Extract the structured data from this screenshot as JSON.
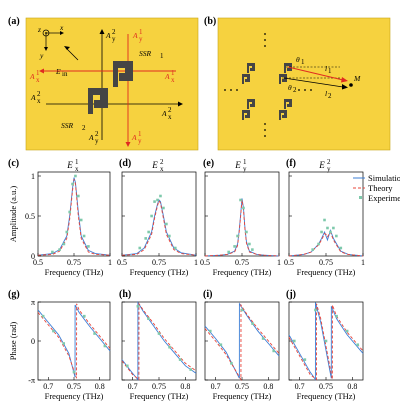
{
  "figure": {
    "panel_labels": [
      "(a)",
      "(b)",
      "(c)",
      "(d)",
      "(e)",
      "(f)",
      "(g)",
      "(h)",
      "(i)",
      "(j)"
    ],
    "colors": {
      "background_panel": "#f6d23f",
      "structure": "#454545",
      "simulation": "#3d7fd6",
      "theory": "#e8443a",
      "experiment": "#7ec9ab",
      "red_arrow": "#e02b20"
    },
    "panel_a": {
      "labels": {
        "x": "x",
        "y": "y",
        "z": "z",
        "ein": "E",
        "ein_sub": "in",
        "ssr1": "SSR",
        "ssr1_sub": "1",
        "ssr2": "SSR",
        "ssr2_sub": "2",
        "a1x": "A",
        "a1y": "A",
        "a2x": "A",
        "a2y": "A",
        "sup1": "1",
        "sup2": "2",
        "sub_x": "x",
        "sub_y": "y"
      }
    },
    "panel_b": {
      "labels": {
        "theta1": "θ",
        "theta2": "θ",
        "sub1": "1",
        "sub2": "2",
        "l1": "l",
        "l2": "l",
        "M": "M"
      }
    }
  },
  "chart_data": [
    {
      "type": "line",
      "panel": "(c)",
      "title": "E",
      "title_sup": "1",
      "title_sub": "x",
      "xlabel": "Frequency (THz)",
      "ylabel": "Amplitude (a.u.)",
      "xlim": [
        0.5,
        1.0
      ],
      "ylim": [
        0,
        1.05
      ],
      "xticks": [
        "0.5",
        "0.75",
        "1"
      ],
      "yticks": [
        "0",
        "0.5",
        "1"
      ],
      "series": [
        {
          "name": "Simulation",
          "x": [
            0.5,
            0.6,
            0.65,
            0.7,
            0.72,
            0.74,
            0.75,
            0.76,
            0.78,
            0.8,
            0.85,
            0.9,
            1.0
          ],
          "y": [
            0.01,
            0.03,
            0.08,
            0.25,
            0.5,
            0.85,
            0.98,
            0.92,
            0.55,
            0.25,
            0.07,
            0.03,
            0.01
          ]
        },
        {
          "name": "Theory",
          "x": [
            0.5,
            0.6,
            0.65,
            0.7,
            0.72,
            0.74,
            0.75,
            0.76,
            0.78,
            0.8,
            0.85,
            0.9,
            1.0
          ],
          "y": [
            0.01,
            0.02,
            0.06,
            0.22,
            0.46,
            0.82,
            0.96,
            0.9,
            0.5,
            0.22,
            0.05,
            0.02,
            0.01
          ]
        },
        {
          "name": "Experiment",
          "x": [
            0.6,
            0.65,
            0.68,
            0.7,
            0.72,
            0.74,
            0.76,
            0.78,
            0.8,
            0.82,
            0.85
          ],
          "y": [
            0.05,
            0.08,
            0.15,
            0.3,
            0.55,
            0.9,
            1.0,
            0.75,
            0.45,
            0.25,
            0.12
          ]
        }
      ]
    },
    {
      "type": "line",
      "panel": "(d)",
      "title": "E",
      "title_sup": "2",
      "title_sub": "x",
      "xlabel": "Frequency (THz)",
      "xlim": [
        0.5,
        1.0
      ],
      "ylim": [
        0,
        1.05
      ],
      "xticks": [
        "0.5",
        "0.75",
        "1"
      ],
      "series": [
        {
          "name": "Simulation",
          "x": [
            0.5,
            0.6,
            0.65,
            0.7,
            0.72,
            0.74,
            0.75,
            0.76,
            0.78,
            0.8,
            0.85,
            0.9,
            1.0
          ],
          "y": [
            0.01,
            0.03,
            0.1,
            0.3,
            0.5,
            0.65,
            0.7,
            0.68,
            0.5,
            0.3,
            0.1,
            0.04,
            0.01
          ]
        },
        {
          "name": "Theory",
          "x": [
            0.5,
            0.6,
            0.65,
            0.7,
            0.72,
            0.74,
            0.75,
            0.76,
            0.78,
            0.8,
            0.85,
            0.9,
            1.0
          ],
          "y": [
            0.01,
            0.02,
            0.08,
            0.27,
            0.47,
            0.63,
            0.69,
            0.66,
            0.47,
            0.27,
            0.08,
            0.03,
            0.01
          ]
        },
        {
          "name": "Experiment",
          "x": [
            0.62,
            0.66,
            0.68,
            0.7,
            0.72,
            0.74,
            0.76,
            0.78,
            0.8,
            0.82,
            0.86
          ],
          "y": [
            0.1,
            0.22,
            0.3,
            0.5,
            0.68,
            0.7,
            0.75,
            0.6,
            0.4,
            0.25,
            0.1
          ]
        }
      ]
    },
    {
      "type": "line",
      "panel": "(e)",
      "title": "E",
      "title_sup": "1",
      "title_sub": "y",
      "xlabel": "Frequency (THz)",
      "xlim": [
        0.5,
        1.0
      ],
      "ylim": [
        0,
        1.05
      ],
      "xticks": [
        "0.5",
        "0.75",
        "1"
      ],
      "series": [
        {
          "name": "Simulation",
          "x": [
            0.5,
            0.6,
            0.65,
            0.7,
            0.72,
            0.73,
            0.74,
            0.75,
            0.76,
            0.77,
            0.78,
            0.8,
            0.85,
            0.9,
            1.0
          ],
          "y": [
            0.0,
            0.01,
            0.02,
            0.06,
            0.15,
            0.3,
            0.5,
            0.72,
            0.6,
            0.35,
            0.18,
            0.06,
            0.02,
            0.01,
            0.0
          ]
        },
        {
          "name": "Theory",
          "x": [
            0.5,
            0.6,
            0.65,
            0.7,
            0.72,
            0.73,
            0.74,
            0.75,
            0.76,
            0.77,
            0.78,
            0.8,
            0.85,
            0.9,
            1.0
          ],
          "y": [
            0.0,
            0.01,
            0.02,
            0.05,
            0.13,
            0.28,
            0.48,
            0.7,
            0.58,
            0.33,
            0.16,
            0.05,
            0.02,
            0.01,
            0.0
          ]
        },
        {
          "name": "Experiment",
          "x": [
            0.66,
            0.7,
            0.72,
            0.74,
            0.76,
            0.78,
            0.8,
            0.82
          ],
          "y": [
            0.05,
            0.12,
            0.25,
            0.7,
            0.6,
            0.3,
            0.15,
            0.08
          ]
        }
      ]
    },
    {
      "type": "line",
      "panel": "(f)",
      "title": "E",
      "title_sup": "2",
      "title_sub": "y",
      "xlabel": "Frequency (THz)",
      "xlim": [
        0.5,
        1.0
      ],
      "ylim": [
        0,
        1.05
      ],
      "xticks": [
        "0.5",
        "0.75",
        "1"
      ],
      "legend": {
        "position": "top-right",
        "entries": [
          "Simulation",
          "Theory",
          "Experiment"
        ]
      },
      "series": [
        {
          "name": "Simulation",
          "x": [
            0.5,
            0.6,
            0.65,
            0.7,
            0.72,
            0.74,
            0.75,
            0.76,
            0.78,
            0.8,
            0.85,
            0.9,
            1.0
          ],
          "y": [
            0.0,
            0.02,
            0.05,
            0.15,
            0.22,
            0.3,
            0.25,
            0.2,
            0.32,
            0.22,
            0.06,
            0.02,
            0.0
          ]
        },
        {
          "name": "Theory",
          "x": [
            0.5,
            0.6,
            0.65,
            0.7,
            0.72,
            0.74,
            0.75,
            0.76,
            0.78,
            0.8,
            0.85,
            0.9,
            1.0
          ],
          "y": [
            0.0,
            0.02,
            0.05,
            0.14,
            0.2,
            0.28,
            0.27,
            0.24,
            0.3,
            0.2,
            0.05,
            0.02,
            0.0
          ]
        },
        {
          "name": "Experiment",
          "x": [
            0.66,
            0.7,
            0.72,
            0.74,
            0.76,
            0.78,
            0.8,
            0.82,
            0.85
          ],
          "y": [
            0.08,
            0.15,
            0.3,
            0.45,
            0.35,
            0.3,
            0.35,
            0.25,
            0.1
          ]
        }
      ]
    },
    {
      "type": "line",
      "panel": "(g)",
      "xlabel": "Frequency (THz)",
      "ylabel": "Phase (rad)",
      "xlim": [
        0.68,
        0.82
      ],
      "ylim": [
        -3.1416,
        3.1416
      ],
      "xticks": [
        "0.7",
        "0.75",
        "0.8"
      ],
      "yticks": [
        "-π",
        "0",
        "π"
      ],
      "series": [
        {
          "name": "Simulation",
          "x": [
            0.68,
            0.7,
            0.72,
            0.74,
            0.752,
            0.7521,
            0.76,
            0.78,
            0.8,
            0.82
          ],
          "y": [
            2.5,
            1.5,
            0.5,
            -1.0,
            -2.9,
            2.9,
            2.3,
            1.2,
            0.2,
            -0.8
          ]
        },
        {
          "name": "Theory",
          "x": [
            0.68,
            0.7,
            0.72,
            0.74,
            0.755,
            0.7551,
            0.76,
            0.78,
            0.8,
            0.82
          ],
          "y": [
            2.3,
            1.3,
            0.3,
            -1.2,
            -3.0,
            3.0,
            2.5,
            1.4,
            0.4,
            -0.6
          ]
        },
        {
          "name": "Experiment",
          "x": [
            0.69,
            0.71,
            0.73,
            0.75,
            0.77,
            0.79,
            0.81
          ],
          "y": [
            2.0,
            0.8,
            -0.2,
            -2.5,
            2.0,
            0.6,
            -0.4
          ]
        }
      ]
    },
    {
      "type": "line",
      "panel": "(h)",
      "xlabel": "Frequency (THz)",
      "xlim": [
        0.68,
        0.82
      ],
      "ylim": [
        -3.1416,
        3.1416
      ],
      "xticks": [
        "0.7",
        "0.75",
        "0.8"
      ],
      "series": [
        {
          "name": "Simulation",
          "x": [
            0.68,
            0.7,
            0.71,
            0.7101,
            0.72,
            0.74,
            0.76,
            0.78,
            0.8,
            0.82
          ],
          "y": [
            -1.5,
            -2.6,
            -3.1,
            3.1,
            2.4,
            1.2,
            0.0,
            -1.0,
            -2.0,
            -2.6
          ]
        },
        {
          "name": "Theory",
          "x": [
            0.68,
            0.7,
            0.712,
            0.7121,
            0.72,
            0.74,
            0.76,
            0.78,
            0.8,
            0.82
          ],
          "y": [
            -1.6,
            -2.7,
            -3.1,
            3.0,
            2.5,
            1.4,
            0.2,
            -0.8,
            -1.8,
            -2.4
          ]
        },
        {
          "name": "Experiment",
          "x": [
            0.69,
            0.71,
            0.73,
            0.75,
            0.77,
            0.79,
            0.81
          ],
          "y": [
            -2.0,
            2.8,
            1.8,
            0.6,
            -0.5,
            -1.5,
            -2.3
          ]
        }
      ]
    },
    {
      "type": "line",
      "panel": "(i)",
      "xlabel": "Frequency (THz)",
      "xlim": [
        0.68,
        0.82
      ],
      "ylim": [
        -3.1416,
        3.1416
      ],
      "xticks": [
        "0.7",
        "0.75",
        "0.8"
      ],
      "series": [
        {
          "name": "Simulation",
          "x": [
            0.68,
            0.7,
            0.72,
            0.745,
            0.7451,
            0.76,
            0.78,
            0.8,
            0.82
          ],
          "y": [
            1.2,
            0.2,
            -0.9,
            -3.0,
            3.0,
            2.0,
            0.8,
            -0.2,
            -1.2
          ]
        },
        {
          "name": "Theory",
          "x": [
            0.68,
            0.7,
            0.72,
            0.748,
            0.7481,
            0.76,
            0.78,
            0.8,
            0.82
          ],
          "y": [
            1.0,
            0.0,
            -1.1,
            -3.1,
            2.9,
            2.1,
            1.0,
            0.0,
            -1.0
          ]
        },
        {
          "name": "Experiment",
          "x": [
            0.69,
            0.71,
            0.73,
            0.75,
            0.77,
            0.79,
            0.81
          ],
          "y": [
            0.8,
            -0.3,
            -1.8,
            2.5,
            1.4,
            0.2,
            -0.8
          ]
        }
      ]
    },
    {
      "type": "line",
      "panel": "(j)",
      "xlabel": "Frequency (THz)",
      "xlim": [
        0.68,
        0.82
      ],
      "ylim": [
        -3.1416,
        3.1416
      ],
      "xticks": [
        "0.7",
        "0.75",
        "0.8"
      ],
      "series": [
        {
          "name": "Simulation",
          "x": [
            0.68,
            0.7,
            0.72,
            0.73,
            0.7301,
            0.74,
            0.76,
            0.7601,
            0.77,
            0.79,
            0.81,
            0.82
          ],
          "y": [
            0.5,
            -1.0,
            -2.5,
            -3.1,
            3.1,
            1.5,
            -3.0,
            2.8,
            1.8,
            0.5,
            -0.5,
            -1.0
          ]
        },
        {
          "name": "Theory",
          "x": [
            0.68,
            0.7,
            0.72,
            0.732,
            0.7321,
            0.74,
            0.762,
            0.7621,
            0.77,
            0.79,
            0.81,
            0.82
          ],
          "y": [
            0.3,
            -1.2,
            -2.7,
            -3.1,
            3.0,
            1.8,
            -3.1,
            2.9,
            2.0,
            0.7,
            -0.3,
            -0.8
          ]
        },
        {
          "name": "Experiment",
          "x": [
            0.69,
            0.71,
            0.73,
            0.75,
            0.77,
            0.79,
            0.81
          ],
          "y": [
            0.0,
            -1.5,
            2.5,
            0.0,
            2.0,
            0.8,
            -0.3
          ]
        }
      ]
    }
  ]
}
